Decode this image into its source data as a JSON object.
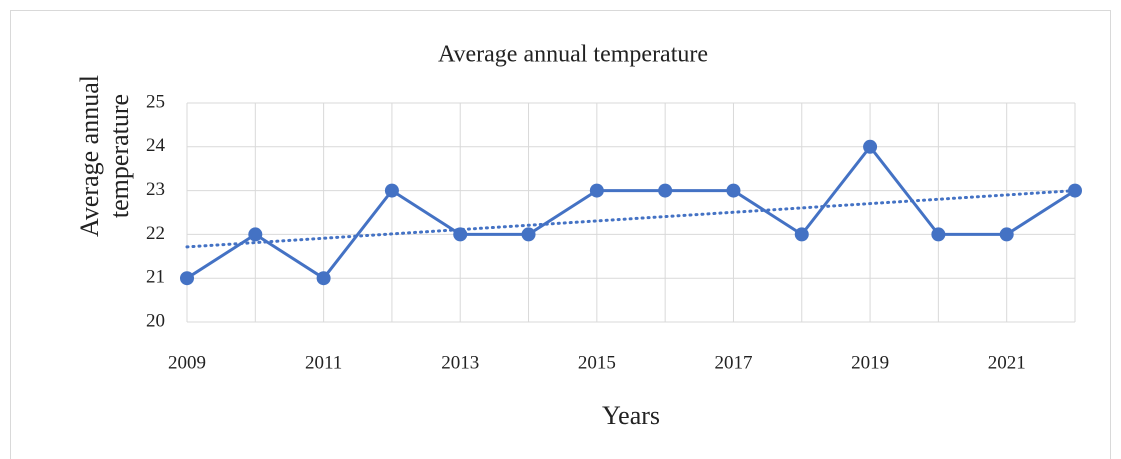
{
  "chart_data": {
    "type": "line",
    "title": "Average annual temperature",
    "x_label": "Years",
    "y_label": "Average annual temperature",
    "x": [
      2009,
      2010,
      2011,
      2012,
      2013,
      2014,
      2015,
      2016,
      2017,
      2018,
      2019,
      2020,
      2021,
      2022
    ],
    "series": [
      {
        "name": "Average annual temperature",
        "color": "#4472c4",
        "values": [
          21,
          22,
          21,
          23,
          22,
          22,
          23,
          23,
          23,
          22,
          24,
          22,
          22,
          23
        ]
      }
    ],
    "xlim": [
      2009,
      2022
    ],
    "xticks": [
      2009,
      2011,
      2013,
      2015,
      2017,
      2019,
      2021
    ],
    "ylim": [
      20,
      25
    ],
    "yticks": [
      20,
      21,
      22,
      23,
      24,
      25
    ],
    "grid": true,
    "trendline": "linear"
  }
}
